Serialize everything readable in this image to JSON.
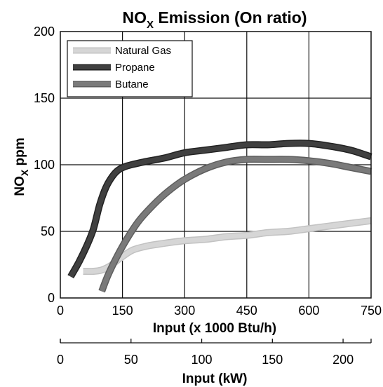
{
  "chart_data": {
    "type": "line",
    "title": "NO",
    "title_sub": "X",
    "title_rest": " Emission (On ratio)",
    "ylabel": "NO",
    "ylabel_sub": "X",
    "ylabel_rest": " ppm",
    "xlabel": "Input (x 1000 Btu/h)",
    "xlabel2": "Input (kW)",
    "xlim": [
      0,
      750
    ],
    "ylim": [
      0,
      200
    ],
    "x_ticks": [
      0,
      150,
      300,
      450,
      600,
      750
    ],
    "y_ticks": [
      0,
      50,
      100,
      150,
      200
    ],
    "x2_ticks": [
      0,
      50,
      100,
      150,
      200
    ],
    "x2_kw_per_unit": 0.29307,
    "grid": true,
    "legend_position": "top-left",
    "series": [
      {
        "name": "Natural Gas",
        "color": "#d6d6d6",
        "points": [
          [
            55,
            20
          ],
          [
            80,
            20
          ],
          [
            100,
            21
          ],
          [
            120,
            24
          ],
          [
            145,
            30
          ],
          [
            175,
            36
          ],
          [
            210,
            39
          ],
          [
            250,
            41
          ],
          [
            300,
            43
          ],
          [
            350,
            44
          ],
          [
            400,
            46
          ],
          [
            450,
            47
          ],
          [
            500,
            49
          ],
          [
            550,
            50
          ],
          [
            600,
            52
          ],
          [
            650,
            54
          ],
          [
            700,
            56
          ],
          [
            750,
            58
          ]
        ]
      },
      {
        "name": "Propane",
        "color": "#404040",
        "points": [
          [
            25,
            16
          ],
          [
            45,
            27
          ],
          [
            65,
            40
          ],
          [
            80,
            52
          ],
          [
            95,
            70
          ],
          [
            110,
            83
          ],
          [
            125,
            91
          ],
          [
            140,
            96
          ],
          [
            160,
            99
          ],
          [
            200,
            102
          ],
          [
            250,
            105
          ],
          [
            300,
            109
          ],
          [
            350,
            111
          ],
          [
            400,
            113
          ],
          [
            450,
            115
          ],
          [
            500,
            115
          ],
          [
            550,
            116
          ],
          [
            600,
            116
          ],
          [
            650,
            114
          ],
          [
            700,
            111
          ],
          [
            750,
            106
          ]
        ]
      },
      {
        "name": "Butane",
        "color": "#7a7a7a",
        "points": [
          [
            100,
            5
          ],
          [
            115,
            17
          ],
          [
            135,
            30
          ],
          [
            160,
            44
          ],
          [
            190,
            58
          ],
          [
            225,
            70
          ],
          [
            260,
            80
          ],
          [
            300,
            89
          ],
          [
            350,
            97
          ],
          [
            400,
            102
          ],
          [
            450,
            104
          ],
          [
            500,
            104
          ],
          [
            550,
            104
          ],
          [
            600,
            103
          ],
          [
            650,
            101
          ],
          [
            700,
            98
          ],
          [
            750,
            95
          ]
        ]
      }
    ]
  }
}
